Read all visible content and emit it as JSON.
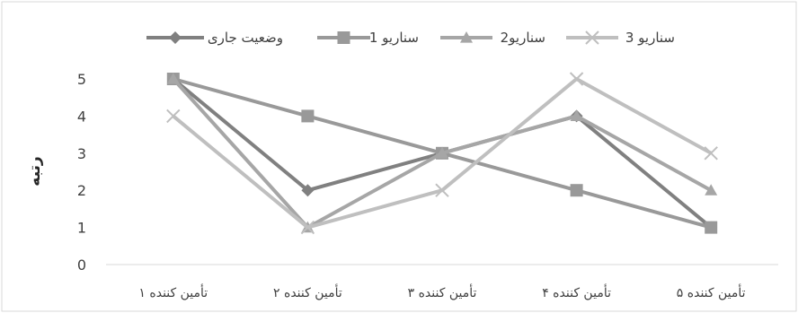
{
  "chart_data": {
    "type": "line",
    "categories": [
      "تأمین کننده ۱",
      "تأمین کننده ۲",
      "تأمین کننده ۳",
      "تأمین کننده ۴",
      "تأمین کننده ۵"
    ],
    "ylabel": "رتبه",
    "ylim": [
      0,
      5
    ],
    "yticks": [
      "0",
      "1",
      "2",
      "3",
      "4",
      "5"
    ],
    "grid": false,
    "legend_position": "top",
    "series": [
      {
        "name": "وضعیت جاری",
        "values": [
          5,
          2,
          3,
          4,
          1
        ],
        "color": "#808080",
        "marker": "diamond"
      },
      {
        "name": "سناریو 1",
        "values": [
          5,
          4,
          3,
          2,
          1
        ],
        "color": "#999999",
        "marker": "square"
      },
      {
        "name": "سناریو2",
        "values": [
          5,
          1,
          3,
          4,
          2
        ],
        "color": "#a6a6a6",
        "marker": "triangle"
      },
      {
        "name": "سناریو 3",
        "values": [
          4,
          1,
          2,
          5,
          3
        ],
        "color": "#bfbfbf",
        "marker": "x"
      }
    ]
  }
}
